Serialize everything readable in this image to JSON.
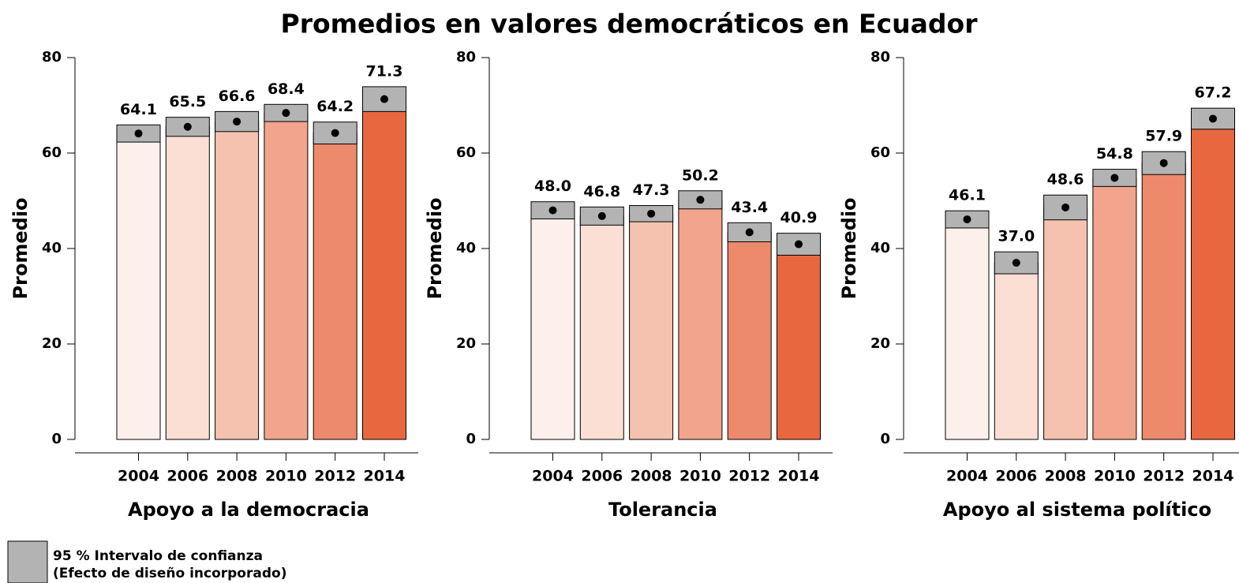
{
  "title": "Promedios en valores democráticos en Ecuador",
  "legend": [
    "95 % Intervalo de confianza",
    "(Efecto de diseño incorporado)"
  ],
  "chart_data": [
    {
      "type": "bar",
      "xlabel": "Apoyo a la democracia",
      "ylabel": "Promedio",
      "categories": [
        "2004",
        "2006",
        "2008",
        "2010",
        "2012",
        "2014"
      ],
      "values": [
        64.1,
        65.5,
        66.6,
        68.4,
        64.2,
        71.3
      ],
      "value_labels": [
        "64.1",
        "65.5",
        "66.6",
        "68.4",
        "64.2",
        "71.3"
      ],
      "errors": [
        1.8,
        2.0,
        2.1,
        1.8,
        2.3,
        2.6
      ],
      "colors": [
        "#fdf0ec",
        "#fbdfd5",
        "#f6c2b0",
        "#f2a58c",
        "#ed8a6b",
        "#e8673f"
      ],
      "ci_color": "#b3b3b3",
      "ylim": [
        0,
        80
      ],
      "yticks": [
        0,
        20,
        40,
        60,
        80
      ]
    },
    {
      "type": "bar",
      "xlabel": "Tolerancia",
      "ylabel": "Promedio",
      "categories": [
        "2004",
        "2006",
        "2008",
        "2010",
        "2012",
        "2014"
      ],
      "values": [
        48.0,
        46.8,
        47.3,
        50.2,
        43.4,
        40.9
      ],
      "value_labels": [
        "48.0",
        "46.8",
        "47.3",
        "50.2",
        "43.4",
        "40.9"
      ],
      "errors": [
        1.8,
        1.9,
        1.7,
        1.9,
        2.0,
        2.3
      ],
      "colors": [
        "#fdf0ec",
        "#fbdfd5",
        "#f6c2b0",
        "#f2a58c",
        "#ed8a6b",
        "#e8673f"
      ],
      "ci_color": "#b3b3b3",
      "ylim": [
        0,
        80
      ],
      "yticks": [
        0,
        20,
        40,
        60,
        80
      ]
    },
    {
      "type": "bar",
      "xlabel": "Apoyo al sistema político",
      "ylabel": "Promedio",
      "categories": [
        "2004",
        "2006",
        "2008",
        "2010",
        "2012",
        "2014"
      ],
      "values": [
        46.1,
        37.0,
        48.6,
        54.8,
        57.9,
        67.2
      ],
      "value_labels": [
        "46.1",
        "37.0",
        "48.6",
        "54.8",
        "57.9",
        "67.2"
      ],
      "errors": [
        1.8,
        2.3,
        2.6,
        1.8,
        2.4,
        2.2
      ],
      "colors": [
        "#fdf0ec",
        "#fbdfd5",
        "#f6c2b0",
        "#f2a58c",
        "#ed8a6b",
        "#e8673f"
      ],
      "ci_color": "#b3b3b3",
      "ylim": [
        0,
        80
      ],
      "yticks": [
        0,
        20,
        40,
        60,
        80
      ]
    }
  ]
}
